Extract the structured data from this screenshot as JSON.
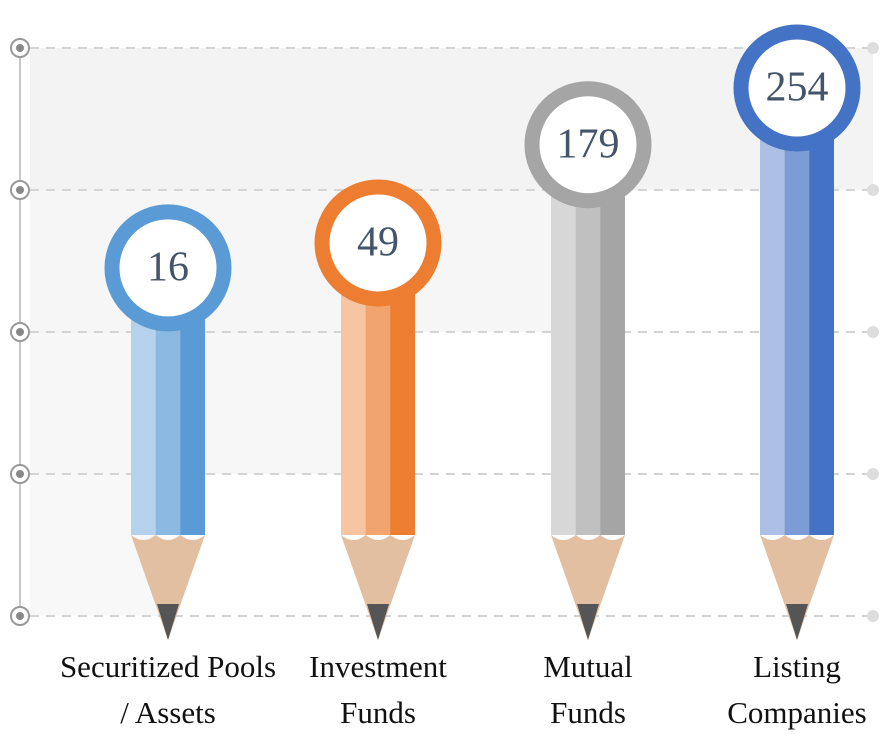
{
  "chart_data": {
    "type": "pencil-bar",
    "categories": [
      "Securitized Pools / Assets",
      "Investment Funds",
      "Mutual Funds",
      "Listing Companies"
    ],
    "values": [
      16,
      49,
      179,
      254
    ],
    "colors": [
      "#5b9bd5",
      "#ed7d31",
      "#a5a5a5",
      "#4472c4"
    ]
  }
}
